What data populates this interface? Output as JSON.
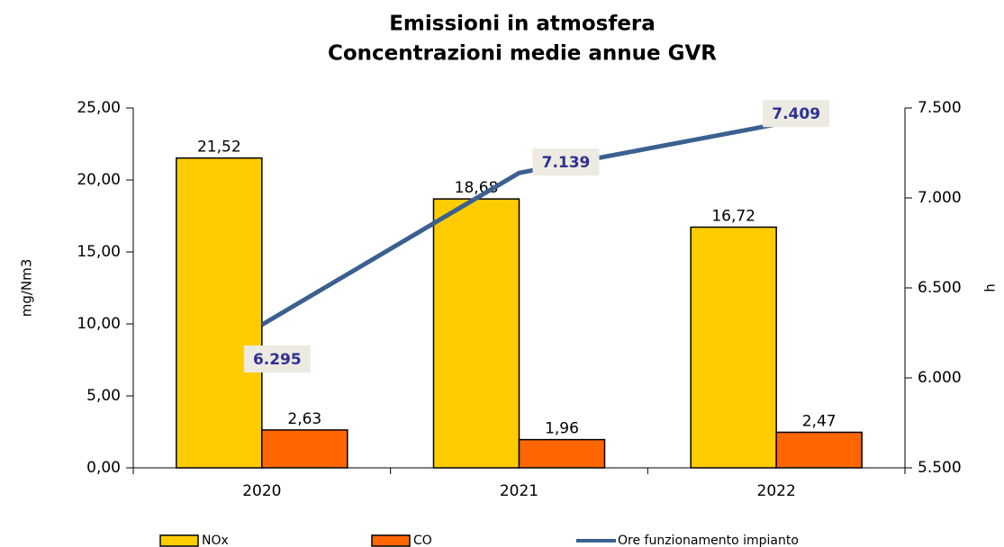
{
  "chart_data": {
    "type": "bar-line",
    "title": "Emissioni in atmosfera",
    "subtitle": "Concentrazioni medie annue GVR",
    "ylabel": "mg/Nm3",
    "y2label": "h",
    "categories": [
      "2020",
      "2021",
      "2022"
    ],
    "series": [
      {
        "name": "NOx",
        "color": "#ffcc00",
        "values": [
          21.52,
          18.68,
          16.72
        ],
        "value_labels": [
          "21,52",
          "18,68",
          "16,72"
        ]
      },
      {
        "name": "CO",
        "color": "#ff6600",
        "values": [
          2.63,
          1.96,
          2.47
        ],
        "value_labels": [
          "2,63",
          "1,96",
          "2,47"
        ]
      },
      {
        "name": "Ore funzionamento impianto",
        "color": "#3b6090",
        "axis": "y2",
        "type": "line",
        "values": [
          6295,
          7139,
          7409
        ],
        "value_labels": [
          "6.295",
          "7.139",
          "7.409"
        ]
      }
    ],
    "ylim": [
      0,
      25
    ],
    "yticks": [
      {
        "value": 0,
        "label": "0,00"
      },
      {
        "value": 5,
        "label": "5,00"
      },
      {
        "value": 10,
        "label": "10,00"
      },
      {
        "value": 15,
        "label": "15,00"
      },
      {
        "value": 20,
        "label": "20,00"
      },
      {
        "value": 25,
        "label": "25,00"
      }
    ],
    "y2lim": [
      5500,
      7500
    ],
    "y2ticks": [
      {
        "value": 5500,
        "label": "5.500"
      },
      {
        "value": 6000,
        "label": "6.000"
      },
      {
        "value": 6500,
        "label": "6.500"
      },
      {
        "value": 7000,
        "label": "7.000"
      },
      {
        "value": 7500,
        "label": "7.500"
      }
    ],
    "legend": "bottom"
  }
}
